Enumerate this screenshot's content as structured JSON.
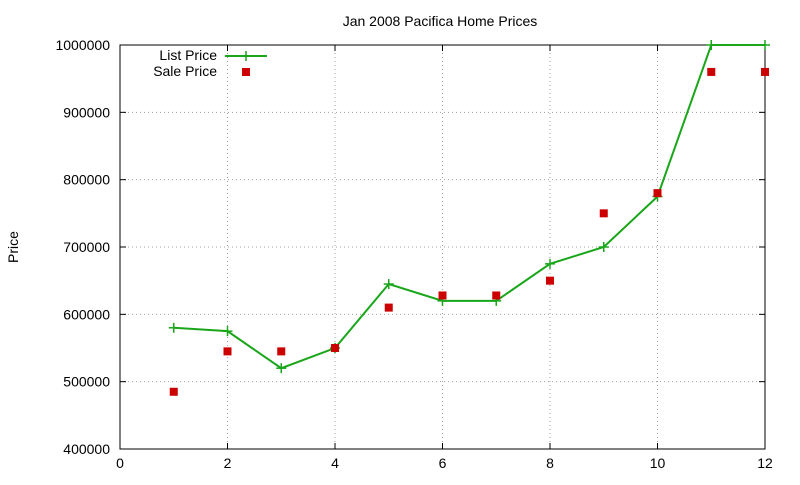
{
  "chart_data": {
    "type": "line",
    "title": "Jan 2008 Pacifica Home Prices",
    "xlabel": "",
    "ylabel": "Price",
    "xlim": [
      0,
      12
    ],
    "ylim": [
      400000,
      1000000
    ],
    "x_ticks": [
      0,
      2,
      4,
      6,
      8,
      10,
      12
    ],
    "y_ticks": [
      400000,
      500000,
      600000,
      700000,
      800000,
      900000,
      1000000
    ],
    "grid": true,
    "legend_position": "top-left",
    "x": [
      1,
      2,
      3,
      4,
      5,
      6,
      7,
      8,
      9,
      10,
      11,
      12
    ],
    "series": [
      {
        "name": "List Price",
        "style": "lines-points",
        "marker": "plus",
        "color": "#1aa61a",
        "values": [
          580000,
          575000,
          520000,
          550000,
          645000,
          620000,
          620000,
          675000,
          700000,
          775000,
          1000000,
          1000000
        ]
      },
      {
        "name": "Sale Price",
        "style": "points",
        "marker": "square",
        "color": "#cc0000",
        "values": [
          485000,
          545000,
          545000,
          550000,
          610000,
          628000,
          628000,
          650000,
          750000,
          780000,
          960000,
          960000
        ]
      }
    ]
  }
}
